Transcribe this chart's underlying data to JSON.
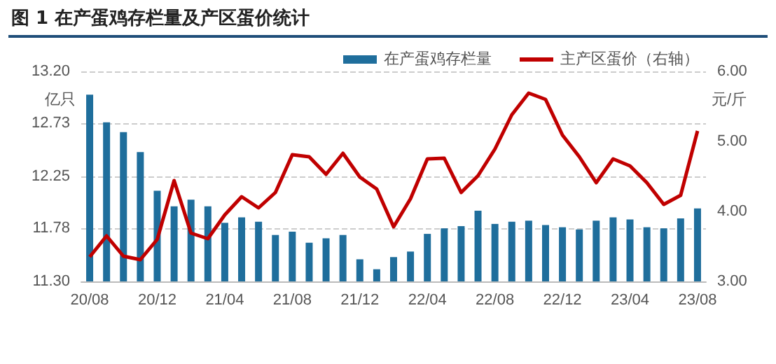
{
  "chart_data": {
    "type": "bar",
    "title": "图 1  在产蛋鸡存栏量及产区蛋价统计",
    "ylabel": "亿只",
    "y2label": "元/斤",
    "categories": [
      "20/08",
      null,
      null,
      null,
      "20/12",
      null,
      null,
      null,
      "21/04",
      null,
      null,
      null,
      "21/08",
      null,
      null,
      null,
      "21/12",
      null,
      null,
      null,
      "22/04",
      null,
      null,
      null,
      "22/08",
      null,
      null,
      null,
      "22/12",
      null,
      null,
      null,
      "23/04",
      null,
      null,
      null,
      "23/08"
    ],
    "series": [
      {
        "name": "在产蛋鸡存栏量",
        "color": "#1f6e9c",
        "values": [
          12.99,
          12.74,
          12.65,
          12.47,
          12.12,
          11.98,
          12.04,
          11.98,
          11.83,
          11.88,
          11.84,
          11.72,
          11.75,
          11.65,
          11.69,
          11.72,
          11.5,
          11.41,
          11.52,
          11.57,
          11.73,
          11.78,
          11.8,
          11.94,
          11.82,
          11.84,
          11.85,
          11.81,
          11.79,
          11.77,
          11.85,
          11.88,
          11.86,
          11.79,
          11.78,
          11.87,
          11.96
        ]
      },
      {
        "name": "主产区蛋价（右轴）",
        "type": "line",
        "axis": "y2",
        "color": "#c00000",
        "values": [
          3.35,
          3.65,
          3.36,
          3.31,
          3.6,
          4.44,
          3.69,
          3.61,
          3.95,
          4.21,
          4.05,
          4.27,
          4.81,
          4.78,
          4.53,
          4.83,
          4.49,
          4.32,
          3.78,
          4.18,
          4.75,
          4.76,
          4.27,
          4.51,
          4.89,
          5.38,
          5.69,
          5.6,
          5.09,
          4.78,
          4.41,
          4.75,
          4.65,
          4.41,
          4.1,
          4.23,
          5.15
        ]
      }
    ],
    "ylim": [
      11.3,
      13.2
    ],
    "yticks": [
      {
        "value": 11.3,
        "label": "11.30"
      },
      {
        "value": 11.78,
        "label": "11.78"
      },
      {
        "value": 12.25,
        "label": "12.25"
      },
      {
        "value": 12.73,
        "label": "12.73"
      },
      {
        "value": 13.2,
        "label": "13.20"
      }
    ],
    "y2lim": [
      3,
      6
    ],
    "y2ticks": [
      {
        "value": 3,
        "label": "3.00"
      },
      {
        "value": 4,
        "label": "4.00"
      },
      {
        "value": 5,
        "label": "5.00"
      },
      {
        "value": 6,
        "label": "6.00"
      }
    ],
    "grid": "y",
    "legend": "top right",
    "marker": "none",
    "line_style": "solid"
  }
}
